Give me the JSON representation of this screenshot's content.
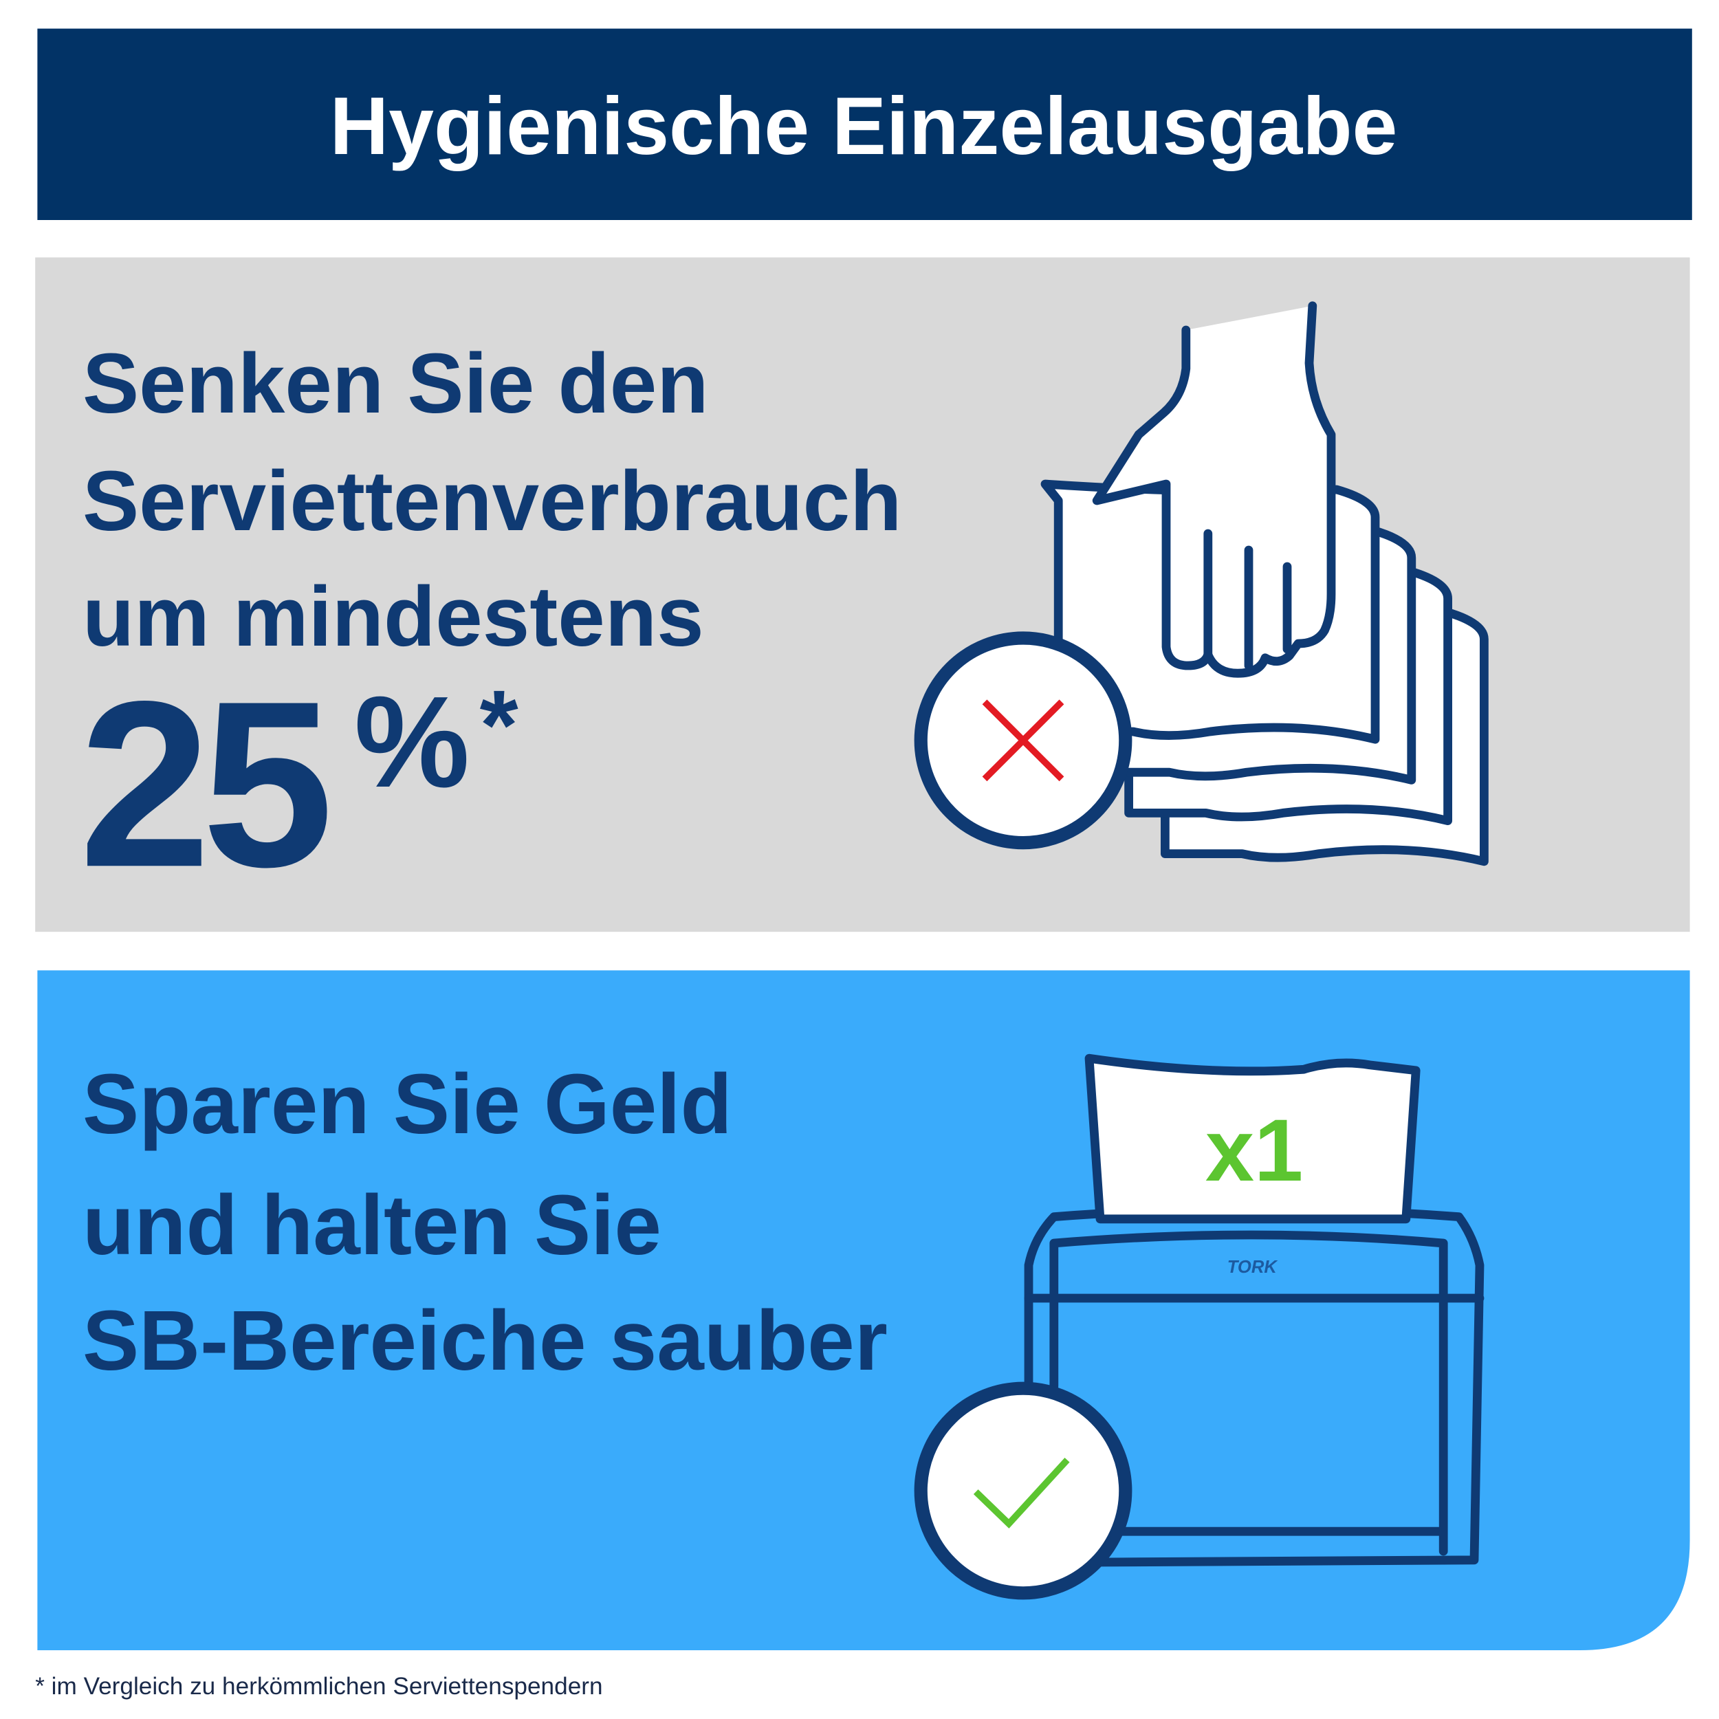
{
  "header": {
    "title": "Hygienische Einzelausgabe"
  },
  "panel1": {
    "lines": [
      "Senken Sie den",
      "Serviettenverbrauch",
      "um mindestens"
    ],
    "figure": "25",
    "unit": "%",
    "mark": "*"
  },
  "panel2": {
    "lines": [
      "Sparen Sie Geld",
      "und halten Sie",
      "SB-Bereiche sauber"
    ],
    "badge": "x1",
    "brand": "TORK"
  },
  "footnote": "* im Vergleich zu herkömmlichen Serviettenspendern"
}
